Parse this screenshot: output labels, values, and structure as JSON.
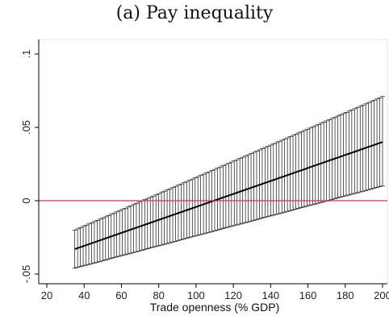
{
  "chart_data": {
    "type": "line",
    "title": "(a) Pay inequality",
    "xlabel": "Trade openness (% GDP)",
    "ylabel": "",
    "xlim": [
      20,
      200
    ],
    "ylim": [
      -0.05,
      0.1
    ],
    "x_ticks": [
      20,
      40,
      60,
      80,
      100,
      120,
      140,
      160,
      180,
      200
    ],
    "x_tick_labels": [
      "20",
      "40",
      "60",
      "80",
      "100",
      "120",
      "140",
      "160",
      "180",
      "200"
    ],
    "y_ticks": [
      -0.05,
      0,
      0.05,
      0.1
    ],
    "y_tick_labels": [
      "-.05",
      "0",
      ".05",
      ".1"
    ],
    "x_range": [
      35,
      200
    ],
    "x_step": 1.5,
    "series": [
      {
        "kind": "point_estimate",
        "x": [
          35,
          200
        ],
        "y": [
          -0.033,
          0.04
        ]
      },
      {
        "kind": "ci_upper",
        "x": [
          35,
          200
        ],
        "y": [
          -0.02,
          0.071
        ]
      },
      {
        "kind": "ci_lower",
        "x": [
          35,
          200
        ],
        "y": [
          -0.046,
          0.01
        ]
      }
    ],
    "reference_line": {
      "y": 0,
      "color": "#cc3366"
    },
    "grid": false,
    "legend": "none",
    "colors": {
      "bars": "#111111",
      "estimate": "#000000",
      "axis": "#000000",
      "reference": "#cc3366"
    }
  }
}
